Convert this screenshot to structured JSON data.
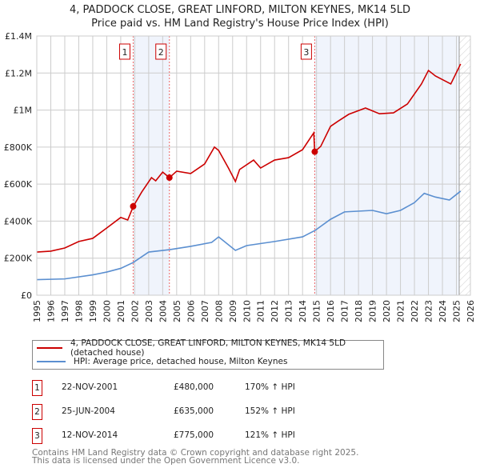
{
  "title": "4, PADDOCK CLOSE, GREAT LINFORD, MILTON KEYNES, MK14 5LD",
  "subtitle": "Price paid vs. HM Land Registry's House Price Index (HPI)",
  "chart_data": {
    "type": "line",
    "xlim": [
      1995,
      2026
    ],
    "ylim": [
      0,
      1400000
    ],
    "x_ticks": [
      "1995",
      "1996",
      "1997",
      "1998",
      "1999",
      "2000",
      "2001",
      "2002",
      "2003",
      "2004",
      "2005",
      "2006",
      "2007",
      "2008",
      "2009",
      "2010",
      "2011",
      "2012",
      "2013",
      "2014",
      "2015",
      "2016",
      "2017",
      "2018",
      "2019",
      "2020",
      "2021",
      "2022",
      "2023",
      "2024",
      "2025",
      "2026"
    ],
    "y_ticks": [
      {
        "v": 0,
        "label": "£0"
      },
      {
        "v": 200000,
        "label": "£200K"
      },
      {
        "v": 400000,
        "label": "£400K"
      },
      {
        "v": 600000,
        "label": "£600K"
      },
      {
        "v": 800000,
        "label": "£800K"
      },
      {
        "v": 1000000,
        "label": "£1M"
      },
      {
        "v": 1200000,
        "label": "£1.2M"
      },
      {
        "v": 1400000,
        "label": "£1.4M"
      }
    ],
    "grid": true,
    "series": [
      {
        "name": "4, PADDOCK CLOSE, GREAT LINFORD, MILTON KEYNES, MK14 5LD (detached house)",
        "color": "#cc0000",
        "x": [
          1995,
          1996,
          1997,
          1998,
          1999,
          2000,
          2001,
          2001.5,
          2001.9,
          2002.5,
          2003.2,
          2003.5,
          2004,
          2004.48,
          2005,
          2006,
          2007,
          2007.7,
          2008,
          2008.7,
          2009.2,
          2009.5,
          2010.5,
          2011,
          2012,
          2013,
          2014,
          2014.8,
          2014.87,
          2015.3,
          2016,
          2016.5,
          2017.3,
          2018.5,
          2019.5,
          2020.5,
          2021.5,
          2022.5,
          2023,
          2023.5,
          2024.6,
          2025.3
        ],
        "y": [
          233000,
          238000,
          255000,
          290000,
          307000,
          363000,
          420000,
          406000,
          480000,
          557000,
          635000,
          618000,
          665000,
          635000,
          670000,
          657000,
          709000,
          800000,
          782000,
          687000,
          614000,
          679000,
          730000,
          687000,
          730000,
          743000,
          786000,
          877000,
          775000,
          804000,
          912000,
          938000,
          977000,
          1011000,
          980000,
          985000,
          1033000,
          1141000,
          1214000,
          1184000,
          1141000,
          1249000
        ]
      },
      {
        "name": "HPI: Average price, detached house, Milton Keynes",
        "color": "#5b8fd0",
        "x": [
          1995,
          1997,
          1999,
          2000,
          2001,
          2001.9,
          2003,
          2004.5,
          2006,
          2007.5,
          2008,
          2009.2,
          2010,
          2012,
          2014,
          2014.9,
          2016,
          2017,
          2019,
          2020,
          2021,
          2022,
          2022.7,
          2023.5,
          2024.5,
          2025.3
        ],
        "y": [
          84000,
          88000,
          110000,
          125000,
          145000,
          177000,
          233000,
          246000,
          264000,
          285000,
          315000,
          242000,
          268000,
          290000,
          315000,
          350000,
          410000,
          450000,
          458000,
          440000,
          458000,
          500000,
          550000,
          530000,
          514000,
          562000
        ]
      }
    ],
    "sales": [
      {
        "num": "1",
        "x": 2001.89,
        "price": 480000,
        "date": "22-NOV-2001",
        "price_label": "£480,000",
        "hpi": "170% ↑ HPI"
      },
      {
        "num": "2",
        "x": 2004.48,
        "price": 635000,
        "date": "25-JUN-2004",
        "price_label": "£635,000",
        "hpi": "152% ↑ HPI"
      },
      {
        "num": "3",
        "x": 2014.87,
        "price": 775000,
        "date": "12-NOV-2014",
        "price_label": "£775,000",
        "hpi": "121% ↑ HPI"
      }
    ],
    "shaded": [
      [
        2001.89,
        2004.48
      ],
      [
        2014.87,
        2025.2
      ]
    ],
    "future_from": 2025.2
  },
  "legend": {
    "property": "4, PADDOCK CLOSE, GREAT LINFORD, MILTON KEYNES, MK14 5LD (detached house)",
    "hpi": "HPI: Average price, detached house, Milton Keynes"
  },
  "footer": {
    "line1": "Contains HM Land Registry data © Crown copyright and database right 2025.",
    "line2": "This data is licensed under the Open Government Licence v3.0."
  }
}
